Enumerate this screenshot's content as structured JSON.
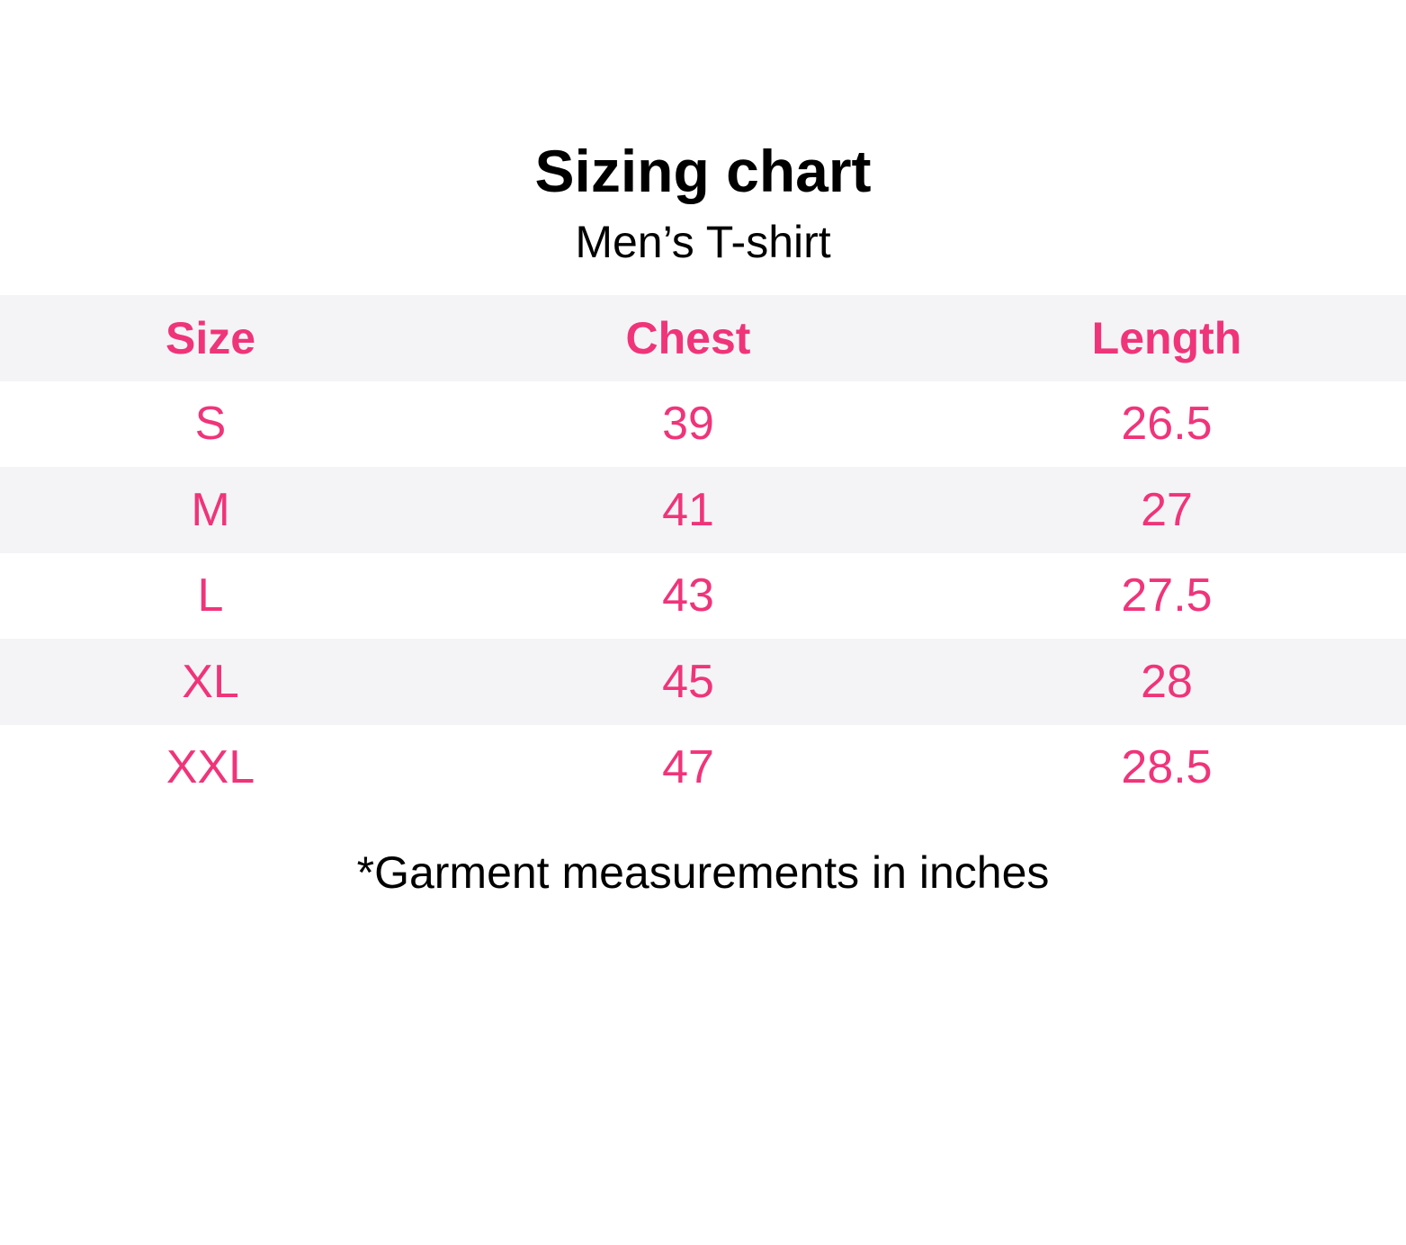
{
  "title": "Sizing chart",
  "subtitle": "Men’s T-shirt",
  "colors": {
    "accent": "#f0347a",
    "stripe": "#f4f4f6"
  },
  "table": {
    "headers": [
      "Size",
      "Chest",
      "Length"
    ],
    "rows": [
      [
        "S",
        "39",
        "26.5"
      ],
      [
        "M",
        "41",
        "27"
      ],
      [
        "L",
        "43",
        "27.5"
      ],
      [
        "XL",
        "45",
        "28"
      ],
      [
        "XXL",
        "47",
        "28.5"
      ]
    ]
  },
  "note": "*Garment measurements in inches"
}
